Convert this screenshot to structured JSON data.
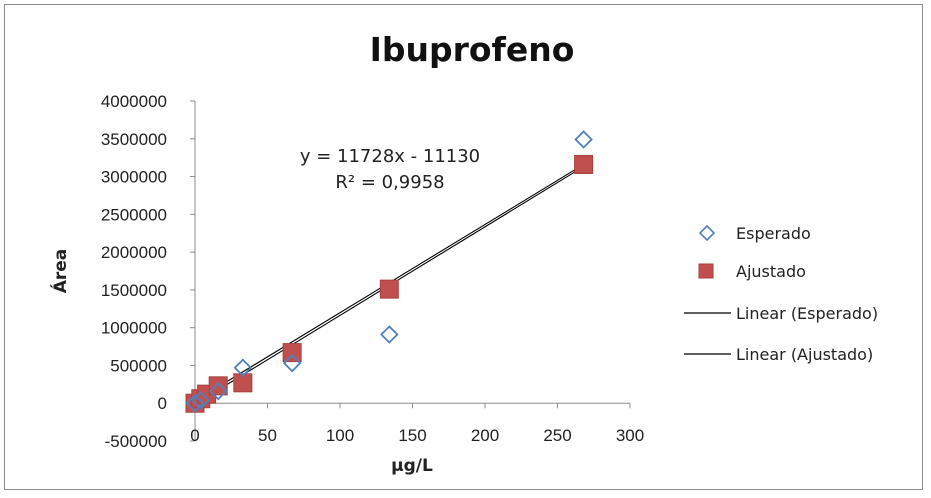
{
  "chart_data": {
    "type": "scatter",
    "title": "Ibuprofeno",
    "xlabel": "µg/L",
    "ylabel": "Área",
    "xlim": [
      0,
      300
    ],
    "ylim": [
      -500000,
      4000000
    ],
    "x_ticks": [
      0,
      50,
      100,
      150,
      200,
      250,
      300
    ],
    "y_ticks": [
      -500000,
      0,
      500000,
      1000000,
      1500000,
      2000000,
      2500000,
      3000000,
      3500000,
      4000000
    ],
    "grid": false,
    "legend_position": "right",
    "series": [
      {
        "name": "Esperado",
        "marker": "diamond-open",
        "color": "#4f81bd",
        "x": [
          0,
          4,
          16,
          33,
          67,
          134,
          268
        ],
        "y": [
          0,
          40000,
          160000,
          470000,
          530000,
          910000,
          3490000
        ]
      },
      {
        "name": "Ajustado",
        "marker": "square-filled",
        "color": "#c0504d",
        "x": [
          0,
          4,
          8,
          16,
          33,
          67,
          134,
          268
        ],
        "y": [
          0,
          60000,
          120000,
          230000,
          270000,
          670000,
          1510000,
          3160000
        ]
      }
    ],
    "trendlines": [
      {
        "name": "Linear (Esperado)",
        "slope": 11728,
        "intercept": -11130,
        "color": "#000000",
        "x_range": [
          0,
          268
        ]
      },
      {
        "name": "Linear (Ajustado)",
        "slope": 11680,
        "intercept": 30000,
        "color": "#000000",
        "x_range": [
          0,
          268
        ]
      }
    ],
    "annotations": {
      "equation": "y = 11728x - 11130",
      "r_squared": "R² = 0,9958"
    }
  }
}
